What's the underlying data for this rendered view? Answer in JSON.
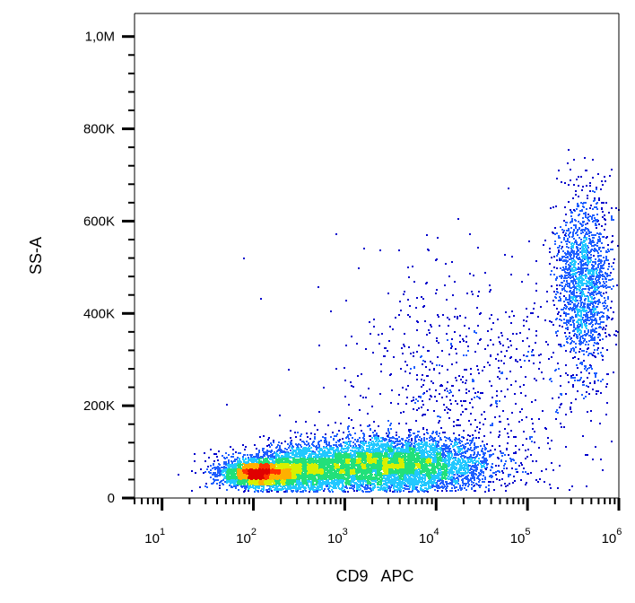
{
  "chart_data": {
    "type": "scatter",
    "style": "flow-cytometry density dot plot",
    "xlabel": "CD9   APC",
    "ylabel": "SS-A",
    "x_scale": "log",
    "xlim": [
      5,
      1000000
    ],
    "ylim": [
      0,
      1050000
    ],
    "x_ticks": [
      {
        "value": 10,
        "base": "10",
        "exp": "1"
      },
      {
        "value": 100,
        "base": "10",
        "exp": "2"
      },
      {
        "value": 1000,
        "base": "10",
        "exp": "3"
      },
      {
        "value": 10000,
        "base": "10",
        "exp": "4"
      },
      {
        "value": 100000,
        "base": "10",
        "exp": "5"
      },
      {
        "value": 1000000,
        "base": "10",
        "exp": "6"
      }
    ],
    "y_ticks": [
      {
        "value": 0,
        "label": "0"
      },
      {
        "value": 200000,
        "label": "200K"
      },
      {
        "value": 400000,
        "label": "400K"
      },
      {
        "value": 600000,
        "label": "600K"
      },
      {
        "value": 800000,
        "label": "800K"
      },
      {
        "value": 1000000,
        "label": "1,0M"
      }
    ],
    "populations": [
      {
        "center_x": 110,
        "center_y": 55000,
        "spread_log_x": 0.18,
        "spread_y": 12000,
        "count": 2200
      },
      {
        "center_x": 250,
        "center_y": 60000,
        "spread_log_x": 0.35,
        "spread_y": 22000,
        "count": 2500
      },
      {
        "center_x": 3000,
        "center_y": 75000,
        "spread_log_x": 0.55,
        "spread_y": 30000,
        "count": 5500
      },
      {
        "center_x": 400000,
        "center_y": 470000,
        "spread_log_x": 0.15,
        "spread_y": 95000,
        "count": 1700
      },
      {
        "center_x": 20000,
        "center_y": 250000,
        "spread_log_x": 0.7,
        "spread_y": 130000,
        "count": 700
      }
    ],
    "density_colors": [
      "#0000cc",
      "#1f5fff",
      "#22c8ff",
      "#22e07a",
      "#d8f000",
      "#ffb000",
      "#ff3000",
      "#e00000"
    ],
    "grid": false,
    "legend": "none"
  }
}
